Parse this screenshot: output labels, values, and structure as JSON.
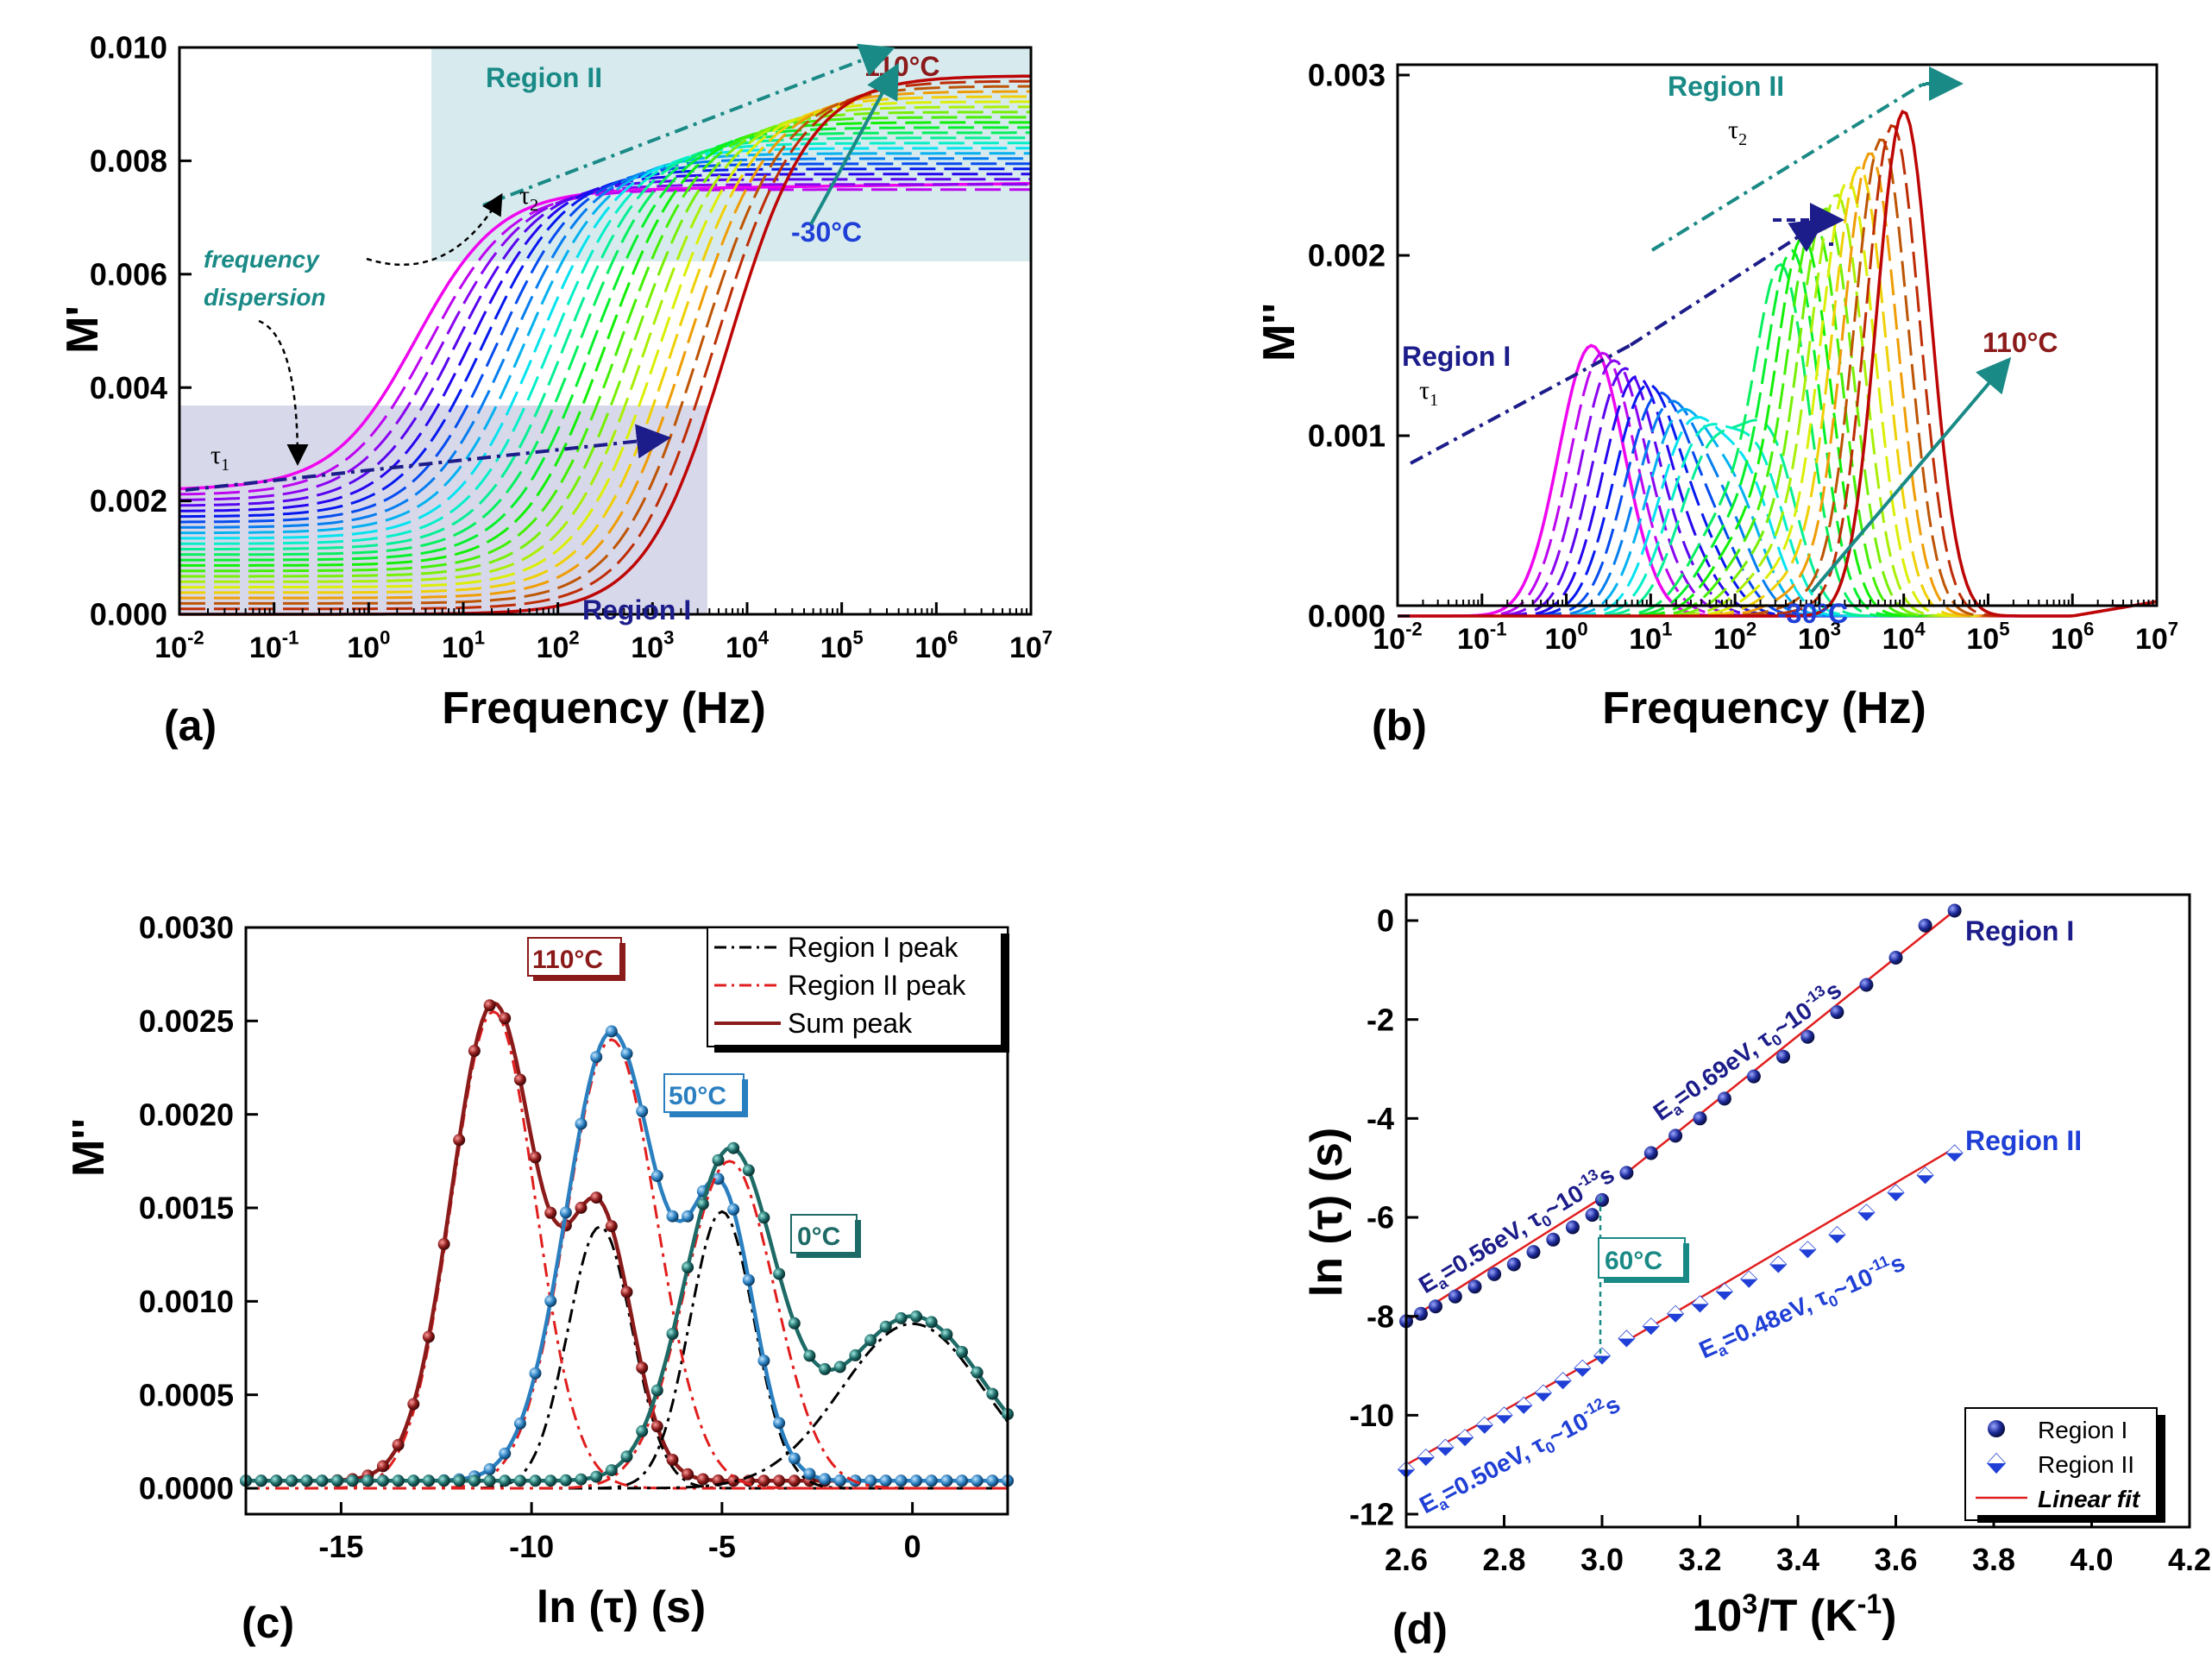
{
  "panels": [
    {
      "id": "a",
      "label": "(a)",
      "chart_data": {
        "type": "line",
        "xlabel": "Frequency (Hz)",
        "ylabel": "M'",
        "xscale": "log",
        "xlim": [
          0.01,
          10000000
        ],
        "ylim": [
          0,
          0.01
        ],
        "xticks": [
          "10-2",
          "10-1",
          "100",
          "101",
          "102",
          "103",
          "104",
          "105",
          "106",
          "107"
        ],
        "yticks": [
          "0.000",
          "0.002",
          "0.004",
          "0.006",
          "0.008",
          "0.010"
        ],
        "series": [
          {
            "temperature": "-30°C",
            "x": [
              0.01,
              0.1,
              1,
              3,
              10,
              100,
              1000,
              10000,
              100000,
              1000000,
              10000000
            ],
            "y": [
              0.0022,
              0.0024,
              0.0033,
              0.0056,
              0.0071,
              0.0074,
              0.0074,
              0.0074,
              0.0074,
              0.0074,
              0.0074
            ]
          },
          {
            "temperature": "110°C",
            "x": [
              0.01,
              0.1,
              1,
              10,
              100,
              1000,
              3000,
              10000,
              100000,
              1000000,
              10000000
            ],
            "y": [
              0.0,
              0.0,
              0.0,
              0.0,
              0.0002,
              0.0022,
              0.0035,
              0.0072,
              0.009,
              0.0093,
              0.0095
            ]
          }
        ],
        "annotations": {
          "region_2": "Region II",
          "region_1": "Region I",
          "t_high": "110°C",
          "t_low": "-30°C",
          "freq_disp_1": "frequency",
          "freq_disp_2": "dispersion"
        }
      }
    },
    {
      "id": "b",
      "label": "(b)",
      "chart_data": {
        "type": "line",
        "xlabel": "Frequency (Hz)",
        "ylabel": "M''",
        "xscale": "log",
        "xlim": [
          0.01,
          10000000
        ],
        "ylim": [
          0,
          0.003
        ],
        "xticks": [
          "10-2",
          "10-1",
          "100",
          "101",
          "102",
          "103",
          "104",
          "105",
          "106",
          "107"
        ],
        "yticks": [
          "0.000",
          "0.001",
          "0.002",
          "0.003"
        ],
        "series": [
          {
            "temperature": "-30°C",
            "x": [
              0.01,
              0.1,
              0.5,
              2,
              5,
              20,
              100,
              1000,
              100000,
              10000000
            ],
            "y": [
              0.0004,
              0.0007,
              0.0012,
              0.0015,
              0.0013,
              0.0006,
              0.0002,
              3e-05,
              0.0,
              0.0001
            ]
          },
          {
            "temperature": "110°C",
            "x": [
              10,
              100,
              300,
              1000,
              2000,
              4000,
              8000,
              20000,
              50000,
              100000,
              1000000,
              10000000
            ],
            "y": [
              0.0,
              0.0001,
              0.0006,
              0.0019,
              0.002,
              0.0025,
              0.0028,
              0.0026,
              0.0012,
              0.0004,
              3e-05,
              0.0001
            ]
          }
        ],
        "annotations": {
          "region_2": "Region II",
          "region_1": "Region I",
          "t_high": "110°C",
          "t_low": "-30°C"
        }
      }
    },
    {
      "id": "c",
      "label": "(c)",
      "chart_data": {
        "type": "line",
        "xlabel": "ln (τ) (s)",
        "ylabel": "M''",
        "xlim": [
          -17.5,
          2.5
        ],
        "ylim": [
          0,
          0.003
        ],
        "xticks": [
          "-15",
          "-10",
          "-5",
          "0"
        ],
        "yticks": [
          "0.0000",
          "0.0005",
          "0.0010",
          "0.0015",
          "0.0020",
          "0.0025",
          "0.0030"
        ],
        "legend": [
          {
            "label": "Region I peak",
            "style": "black-dashdot"
          },
          {
            "label": "Region II peak",
            "style": "red-dashdot"
          },
          {
            "label": "Sum peak",
            "style": "darkred-solid"
          }
        ],
        "legend_position": "top-right",
        "series": [
          {
            "temperature": "110°C",
            "region_1": {
              "center": -8.2,
              "height": 0.0014,
              "width": 1.0
            },
            "region_2": {
              "center": -11.0,
              "height": 0.00255,
              "width": 1.3
            }
          },
          {
            "temperature": "50°C",
            "region_1": {
              "center": -5.0,
              "height": 0.00148,
              "width": 1.0
            },
            "region_2": {
              "center": -7.9,
              "height": 0.0024,
              "width": 1.4
            }
          },
          {
            "temperature": "0°C",
            "region_1": {
              "center": 0.0,
              "height": 0.00088,
              "width": 2.2
            },
            "region_2": {
              "center": -4.8,
              "height": 0.00175,
              "width": 1.4
            }
          }
        ],
        "annotations": {
          "t_110": "110°C",
          "t_50": "50°C",
          "t_0": "0°C"
        }
      }
    },
    {
      "id": "d",
      "label": "(d)",
      "chart_data": {
        "type": "scatter",
        "xlabel": "103/T (K-1)",
        "ylabel": "ln (τ) (s)",
        "xlim": [
          2.6,
          4.2
        ],
        "ylim": [
          -12,
          1
        ],
        "xticks": [
          "2.6",
          "2.8",
          "3.0",
          "3.2",
          "3.4",
          "3.6",
          "3.8",
          "4.0",
          "4.2"
        ],
        "yticks": [
          "0",
          "-2",
          "-4",
          "-6",
          "-8",
          "-10",
          "-12"
        ],
        "legend": [
          {
            "label": "Region I",
            "marker": "sphere"
          },
          {
            "label": "Region II",
            "marker": "diamond"
          },
          {
            "label": "Linear fit",
            "style": "red-solid"
          }
        ],
        "legend_position": "bottom-right",
        "series": [
          {
            "name": "Region I",
            "x": [
              2.6,
              2.63,
              2.66,
              2.7,
              2.74,
              2.78,
              2.82,
              2.86,
              2.9,
              2.94,
              2.98,
              3.0,
              3.05,
              3.1,
              3.15,
              3.2,
              3.25,
              3.31,
              3.37,
              3.42,
              3.48,
              3.54,
              3.6,
              3.66,
              3.72
            ],
            "y": [
              -8.1,
              -7.95,
              -7.8,
              -7.6,
              -7.4,
              -7.15,
              -6.95,
              -6.7,
              -6.45,
              -6.2,
              -5.95,
              -5.65,
              -5.1,
              -4.7,
              -4.35,
              -4.0,
              -3.6,
              -3.15,
              -2.75,
              -2.35,
              -1.85,
              -1.3,
              -0.75,
              -0.1,
              0.2
            ]
          },
          {
            "name": "Region II",
            "x": [
              2.6,
              2.64,
              2.68,
              2.72,
              2.76,
              2.8,
              2.84,
              2.88,
              2.92,
              2.96,
              3.0,
              3.05,
              3.1,
              3.15,
              3.2,
              3.25,
              3.3,
              3.36,
              3.42,
              3.48,
              3.54,
              3.6,
              3.66,
              3.72
            ],
            "y": [
              -11.1,
              -10.85,
              -10.65,
              -10.45,
              -10.2,
              -10.0,
              -9.8,
              -9.55,
              -9.3,
              -9.05,
              -8.8,
              -8.45,
              -8.2,
              -7.95,
              -7.75,
              -7.5,
              -7.25,
              -6.95,
              -6.65,
              -6.35,
              -5.9,
              -5.5,
              -5.15,
              -4.7
            ]
          }
        ],
        "fits": [
          {
            "x": [
              2.6,
              3.0
            ],
            "y": [
              -8.1,
              -5.6
            ]
          },
          {
            "x": [
              3.05,
              3.72
            ],
            "y": [
              -5.1,
              0.2
            ]
          },
          {
            "x": [
              2.6,
              3.0
            ],
            "y": [
              -11.0,
              -8.8
            ]
          },
          {
            "x": [
              3.05,
              3.72
            ],
            "y": [
              -8.5,
              -4.6
            ]
          }
        ],
        "annotations": {
          "region_1": "Region I",
          "region_2": "Region II",
          "t_60": "60°C",
          "fit_1a": "Ea=0.56eV, τ0~10-13s",
          "fit_1b": "Ea=0.69eV, τ0~10-13s",
          "fit_2a": "Ea=0.50eV, τ0~10-12s",
          "fit_2b": "Ea=0.48eV, τ0~10-11s"
        }
      }
    }
  ],
  "colors": {
    "teal": "#1a8a86",
    "navy": "#1c1c8a",
    "blue": "#1f3fd6",
    "darkred": "#8b1a1a",
    "red": "#e11e1e",
    "steelblue": "#2a7fc0",
    "darkteal": "#1d6a66"
  }
}
